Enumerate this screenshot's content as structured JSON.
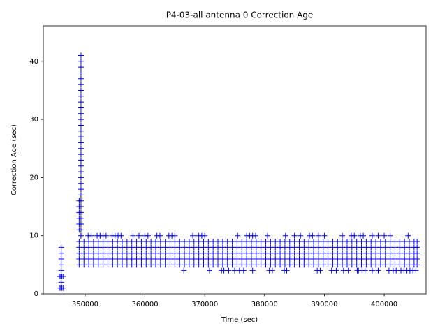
{
  "chart_data": {
    "type": "scatter",
    "title": "P4-03-all antenna 0 Correction Age",
    "x_label": "Time (sec)",
    "y_label": "Correction Age (sec)",
    "xlim": [
      343000,
      407000
    ],
    "ylim": [
      0,
      46.1
    ],
    "xticks": [
      350000,
      360000,
      370000,
      380000,
      390000,
      400000
    ],
    "yticks": [
      0,
      10,
      20,
      30,
      40
    ],
    "marker": "+",
    "series": [
      {
        "color": "#0000ff",
        "x": [
          345700,
          345900,
          346100,
          346300,
          345700,
          345900,
          346100,
          346300,
          346000,
          346000,
          346000,
          346000,
          346000,
          346000
        ],
        "y": [
          1,
          1,
          1,
          1,
          3,
          3,
          3,
          3,
          2,
          4,
          5,
          6,
          7,
          8
        ]
      },
      {
        "color": "#0000ff",
        "x": [
          349300,
          349300,
          349300,
          349300,
          349300,
          349300,
          349300,
          349300,
          349300,
          349300,
          349300,
          349300,
          349300,
          349300,
          349300,
          349300,
          349300,
          349300,
          349300,
          349300,
          349300,
          349300,
          349300,
          349300,
          349300,
          349300,
          349300,
          349300,
          349300,
          349300,
          349300,
          349300,
          349000,
          349000,
          349000,
          349000,
          349000,
          349000
        ],
        "y": [
          10,
          11,
          12,
          13,
          14,
          15,
          16,
          17,
          18,
          19,
          20,
          21,
          22,
          23,
          24,
          25,
          26,
          27,
          28,
          29,
          30,
          31,
          32,
          33,
          34,
          35,
          36,
          37,
          38,
          39,
          40,
          41,
          11,
          12,
          13,
          14,
          15,
          16
        ]
      },
      {
        "color": "#0000ff",
        "x": [
          349000,
          349800,
          350600,
          351400,
          352200,
          353000,
          353800,
          354600,
          355400,
          356200,
          357000,
          357800,
          358600,
          359400,
          360200,
          361000,
          361800,
          362600,
          363400,
          364200,
          365000,
          365800,
          366600,
          367400,
          368200,
          369000,
          369800,
          370600,
          371400,
          372200,
          373000,
          373800,
          374600,
          375400,
          376200,
          377000,
          377800,
          378600,
          379400,
          380200,
          381000,
          381800,
          382600,
          383400,
          384200,
          385000,
          385800,
          386600,
          387400,
          388200,
          389000,
          389800,
          390600,
          391400,
          392200,
          393000,
          393800,
          394600,
          395400,
          396200,
          397000,
          397800,
          398600,
          399400,
          400200,
          401000,
          401800,
          402600,
          403400,
          404200,
          405000,
          405500
        ],
        "y": [
          5,
          5,
          5,
          5,
          5,
          5,
          5,
          5,
          5,
          5,
          5,
          5,
          5,
          5,
          5,
          5,
          5,
          5,
          5,
          5,
          5,
          5,
          5,
          5,
          5,
          5,
          5,
          5,
          5,
          5,
          5,
          5,
          5,
          5,
          5,
          5,
          5,
          5,
          5,
          5,
          5,
          5,
          5,
          5,
          5,
          5,
          5,
          5,
          5,
          5,
          5,
          5,
          5,
          5,
          5,
          5,
          5,
          5,
          5,
          5,
          5,
          5,
          5,
          5,
          5,
          5,
          5,
          5,
          5,
          5,
          5,
          5
        ]
      },
      {
        "color": "#0000ff",
        "x": [
          349000,
          349800,
          350600,
          351400,
          352200,
          353000,
          353800,
          354600,
          355400,
          356200,
          357000,
          357800,
          358600,
          359400,
          360200,
          361000,
          361800,
          362600,
          363400,
          364200,
          365000,
          365800,
          366600,
          367400,
          368200,
          369000,
          369800,
          370600,
          371400,
          372200,
          373000,
          373800,
          374600,
          375400,
          376200,
          377000,
          377800,
          378600,
          379400,
          380200,
          381000,
          381800,
          382600,
          383400,
          384200,
          385000,
          385800,
          386600,
          387400,
          388200,
          389000,
          389800,
          390600,
          391400,
          392200,
          393000,
          393800,
          394600,
          395400,
          396200,
          397000,
          397800,
          398600,
          399400,
          400200,
          401000,
          401800,
          402600,
          403400,
          404200,
          405000,
          405500
        ],
        "y": [
          6,
          6,
          6,
          6,
          6,
          6,
          6,
          6,
          6,
          6,
          6,
          6,
          6,
          6,
          6,
          6,
          6,
          6,
          6,
          6,
          6,
          6,
          6,
          6,
          6,
          6,
          6,
          6,
          6,
          6,
          6,
          6,
          6,
          6,
          6,
          6,
          6,
          6,
          6,
          6,
          6,
          6,
          6,
          6,
          6,
          6,
          6,
          6,
          6,
          6,
          6,
          6,
          6,
          6,
          6,
          6,
          6,
          6,
          6,
          6,
          6,
          6,
          6,
          6,
          6,
          6,
          6,
          6,
          6,
          6,
          6,
          6
        ]
      },
      {
        "color": "#0000ff",
        "x": [
          349000,
          349800,
          350600,
          351400,
          352200,
          353000,
          353800,
          354600,
          355400,
          356200,
          357000,
          357800,
          358600,
          359400,
          360200,
          361000,
          361800,
          362600,
          363400,
          364200,
          365000,
          365800,
          366600,
          367400,
          368200,
          369000,
          369800,
          370600,
          371400,
          372200,
          373000,
          373800,
          374600,
          375400,
          376200,
          377000,
          377800,
          378600,
          379400,
          380200,
          381000,
          381800,
          382600,
          383400,
          384200,
          385000,
          385800,
          386600,
          387400,
          388200,
          389000,
          389800,
          390600,
          391400,
          392200,
          393000,
          393800,
          394600,
          395400,
          396200,
          397000,
          397800,
          398600,
          399400,
          400200,
          401000,
          401800,
          402600,
          403400,
          404200,
          405000,
          405500
        ],
        "y": [
          7,
          7,
          7,
          7,
          7,
          7,
          7,
          7,
          7,
          7,
          7,
          7,
          7,
          7,
          7,
          7,
          7,
          7,
          7,
          7,
          7,
          7,
          7,
          7,
          7,
          7,
          7,
          7,
          7,
          7,
          7,
          7,
          7,
          7,
          7,
          7,
          7,
          7,
          7,
          7,
          7,
          7,
          7,
          7,
          7,
          7,
          7,
          7,
          7,
          7,
          7,
          7,
          7,
          7,
          7,
          7,
          7,
          7,
          7,
          7,
          7,
          7,
          7,
          7,
          7,
          7,
          7,
          7,
          7,
          7,
          7,
          7
        ]
      },
      {
        "color": "#0000ff",
        "x": [
          349000,
          349800,
          350600,
          351400,
          352200,
          353000,
          353800,
          354600,
          355400,
          356200,
          357000,
          357800,
          358600,
          359400,
          360200,
          361000,
          361800,
          362600,
          363400,
          364200,
          365000,
          365800,
          366600,
          367400,
          368200,
          369000,
          369800,
          370600,
          371400,
          372200,
          373000,
          373800,
          374600,
          375400,
          376200,
          377000,
          377800,
          378600,
          379400,
          380200,
          381000,
          381800,
          382600,
          383400,
          384200,
          385000,
          385800,
          386600,
          387400,
          388200,
          389000,
          389800,
          390600,
          391400,
          392200,
          393000,
          393800,
          394600,
          395400,
          396200,
          397000,
          397800,
          398600,
          399400,
          400200,
          401000,
          401800,
          402600,
          403400,
          404200,
          405000,
          405500
        ],
        "y": [
          8,
          8,
          8,
          8,
          8,
          8,
          8,
          8,
          8,
          8,
          8,
          8,
          8,
          8,
          8,
          8,
          8,
          8,
          8,
          8,
          8,
          8,
          8,
          8,
          8,
          8,
          8,
          8,
          8,
          8,
          8,
          8,
          8,
          8,
          8,
          8,
          8,
          8,
          8,
          8,
          8,
          8,
          8,
          8,
          8,
          8,
          8,
          8,
          8,
          8,
          8,
          8,
          8,
          8,
          8,
          8,
          8,
          8,
          8,
          8,
          8,
          8,
          8,
          8,
          8,
          8,
          8,
          8,
          8,
          8,
          8,
          8
        ]
      },
      {
        "color": "#0000ff",
        "x": [
          349000,
          349800,
          350600,
          351400,
          352200,
          353000,
          353800,
          354600,
          355400,
          356200,
          357000,
          357800,
          358600,
          359400,
          360200,
          361000,
          361800,
          362600,
          363400,
          364200,
          365000,
          365800,
          366600,
          367400,
          368200,
          369000,
          369800,
          370600,
          371400,
          372200,
          373000,
          373800,
          374600,
          375400,
          376200,
          377000,
          377800,
          378600,
          379400,
          380200,
          381000,
          381800,
          382600,
          383400,
          384200,
          385000,
          385800,
          386600,
          387400,
          388200,
          389000,
          389800,
          390600,
          391400,
          392200,
          393000,
          393800,
          394600,
          395400,
          396200,
          397000,
          397800,
          398600,
          399400,
          400200,
          401000,
          401800,
          402600,
          403400,
          404200,
          405000,
          405500
        ],
        "y": [
          9,
          9,
          9,
          9,
          9,
          9,
          9,
          9,
          9,
          9,
          9,
          9,
          9,
          9,
          9,
          9,
          9,
          9,
          9,
          9,
          9,
          9,
          9,
          9,
          9,
          9,
          9,
          9,
          9,
          9,
          9,
          9,
          9,
          9,
          9,
          9,
          9,
          9,
          9,
          9,
          9,
          9,
          9,
          9,
          9,
          9,
          9,
          9,
          9,
          9,
          9,
          9,
          9,
          9,
          9,
          9,
          9,
          9,
          9,
          9,
          9,
          9,
          9,
          9,
          9,
          9,
          9,
          9,
          9,
          9,
          9,
          9
        ]
      },
      {
        "color": "#0000ff",
        "x": [
          350500,
          351000,
          352000,
          352500,
          353000,
          353500,
          354500,
          355000,
          355500,
          356000,
          358000,
          359000,
          360000,
          360500,
          362000,
          362500,
          364000,
          364500,
          365000,
          368000,
          369000,
          369500,
          370000,
          375500,
          377000,
          377500,
          378000,
          378500,
          380500,
          383500,
          385000,
          386000,
          387500,
          388000,
          389000,
          390000,
          393000,
          394500,
          395000,
          396000,
          396500,
          398000,
          399000,
          400000,
          401000,
          404000
        ],
        "y": [
          10,
          10,
          10,
          10,
          10,
          10,
          10,
          10,
          10,
          10,
          10,
          10,
          10,
          10,
          10,
          10,
          10,
          10,
          10,
          10,
          10,
          10,
          10,
          10,
          10,
          10,
          10,
          10,
          10,
          10,
          10,
          10,
          10,
          10,
          10,
          10,
          10,
          10,
          10,
          10,
          10,
          10,
          10,
          10,
          10,
          10
        ]
      },
      {
        "color": "#0000ff",
        "x": [
          366500,
          370800,
          372800,
          373200,
          374000,
          375000,
          375800,
          376500,
          378000,
          380800,
          381300,
          383300,
          383700,
          388800,
          389300,
          391200,
          392000,
          393200,
          394000,
          395500,
          395700,
          396300,
          396800,
          398000,
          399000,
          400800,
          401500,
          402000,
          402800,
          403300,
          403800,
          404300,
          404800,
          405300
        ],
        "y": [
          4,
          4,
          4,
          4,
          4,
          4,
          4,
          4,
          4,
          4,
          4,
          4,
          4,
          4,
          4,
          4,
          4,
          4,
          4,
          4,
          4,
          4,
          4,
          4,
          4,
          4,
          4,
          4,
          4,
          4,
          4,
          4,
          4,
          4
        ]
      }
    ]
  }
}
